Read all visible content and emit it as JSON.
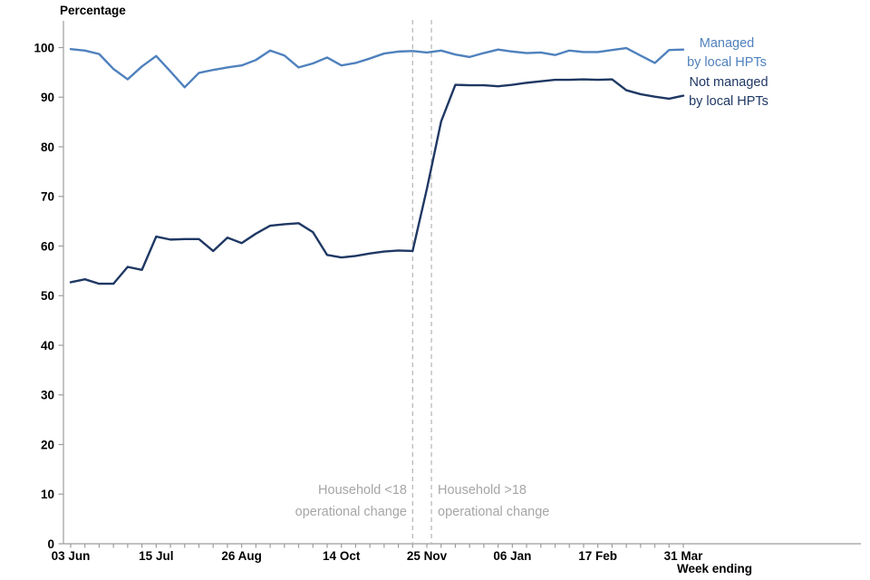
{
  "chart_data": {
    "type": "line",
    "title": "Percentage",
    "xlabel": "Week ending",
    "ylim": [
      0,
      100
    ],
    "y_ticks": [
      0,
      10,
      20,
      30,
      40,
      50,
      60,
      70,
      80,
      90,
      100
    ],
    "weeks_total": 44,
    "x_tick_labels": [
      {
        "week": 0,
        "label": "03 Jun"
      },
      {
        "week": 6,
        "label": "15 Jul"
      },
      {
        "week": 12,
        "label": "26 Aug"
      },
      {
        "week": 19,
        "label": "14 Oct"
      },
      {
        "week": 25,
        "label": "25 Nov"
      },
      {
        "week": 31,
        "label": "06 Jan"
      },
      {
        "week": 37,
        "label": "17 Feb"
      },
      {
        "week": 43,
        "label": "31 Mar"
      }
    ],
    "series": [
      {
        "name": "Managed by local HPTs",
        "legend_lines": [
          "Managed",
          "by local HPTs"
        ],
        "color": "#4F81BD",
        "values": [
          99.7,
          99.4,
          98.7,
          95.7,
          93.6,
          96.2,
          98.3,
          95.2,
          92.0,
          94.9,
          95.5,
          96.0,
          96.4,
          97.5,
          99.4,
          98.4,
          96.0,
          96.8,
          98.0,
          96.4,
          96.9,
          97.8,
          98.8,
          99.2,
          99.3,
          99.0,
          99.4,
          98.6,
          98.1,
          98.9,
          99.6,
          99.2,
          98.9,
          99.0,
          98.5,
          99.4,
          99.1,
          99.1,
          99.5,
          99.9,
          98.4,
          96.9,
          99.5,
          99.6
        ]
      },
      {
        "name": "Not managed by local HPTs",
        "legend_lines": [
          "Not managed",
          "by local HPTs"
        ],
        "color": "#1F3864",
        "values": [
          52.7,
          53.3,
          52.4,
          52.4,
          55.8,
          55.2,
          61.9,
          61.3,
          61.4,
          61.4,
          59.0,
          61.7,
          60.6,
          62.5,
          64.1,
          64.4,
          64.6,
          62.8,
          58.2,
          57.7,
          58.0,
          58.5,
          58.9,
          59.1,
          59.0,
          71.5,
          85.1,
          92.5,
          92.4,
          92.4,
          92.2,
          92.5,
          92.9,
          93.2,
          93.5,
          93.5,
          93.6,
          93.5,
          93.6,
          91.4,
          90.6,
          90.1,
          89.7,
          90.3
        ]
      }
    ],
    "reference_lines": [
      {
        "week": 24.0
      },
      {
        "week": 25.32
      }
    ],
    "annotations": [
      {
        "lines": [
          "Household <18",
          "operational change"
        ],
        "position": "left-of-first-reference-line"
      },
      {
        "lines": [
          "Household >18",
          "operational change"
        ],
        "position": "right-of-second-reference-line"
      }
    ],
    "legend_position": "right",
    "grid": false,
    "colors": {
      "managed_line": "#4F81BD",
      "not_managed_line": "#1F3864",
      "annotation_text": "#A6A6A6",
      "reference_line": "#B3B3B3",
      "axis": "#9C9C9C",
      "tick_label_text": "#000000"
    }
  }
}
